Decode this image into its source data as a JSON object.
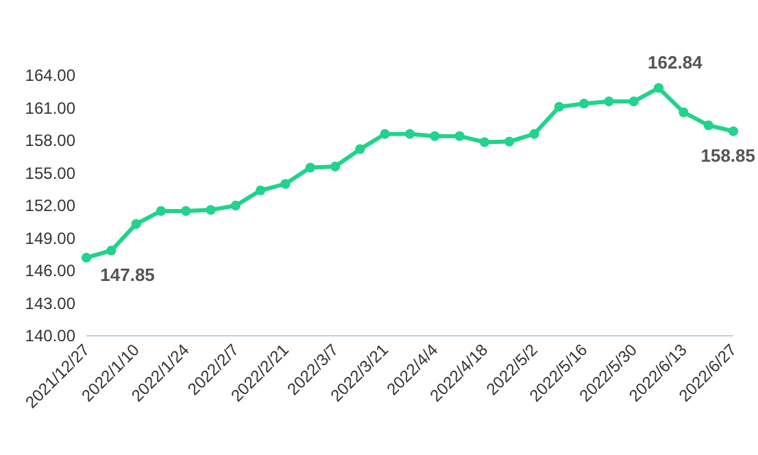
{
  "chart_data": {
    "type": "line",
    "marker": "circle",
    "line_style": "solid",
    "grid": false,
    "x": [
      "2021-12-27",
      "2022-01-03",
      "2022-01-10",
      "2022-01-17",
      "2022-01-24",
      "2022-01-31",
      "2022-02-07",
      "2022-02-14",
      "2022-02-21",
      "2022-02-28",
      "2022-03-07",
      "2022-03-14",
      "2022-03-21",
      "2022-03-28",
      "2022-04-04",
      "2022-04-11",
      "2022-04-18",
      "2022-04-25",
      "2022-05-02",
      "2022-05-09",
      "2022-05-16",
      "2022-05-23",
      "2022-05-30",
      "2022-06-06",
      "2022-06-13",
      "2022-06-20",
      "2022-06-27"
    ],
    "series": [
      {
        "color": "#21d38b",
        "values": [
          147.2,
          147.85,
          150.3,
          151.5,
          151.5,
          151.6,
          152.0,
          153.4,
          154.0,
          155.5,
          155.6,
          157.2,
          158.6,
          158.6,
          158.4,
          158.4,
          157.85,
          157.9,
          158.6,
          161.1,
          161.4,
          161.6,
          161.6,
          162.84,
          160.6,
          159.4,
          158.85
        ]
      }
    ],
    "xlim": [
      "2021-12-27",
      "2022-06-27"
    ],
    "xticks": [
      {
        "value": "2021-12-27",
        "label": "2021/12/27"
      },
      {
        "value": "2022-01-10",
        "label": "2022/1/10"
      },
      {
        "value": "2022-01-24",
        "label": "2022/1/24"
      },
      {
        "value": "2022-02-07",
        "label": "2022/2/7"
      },
      {
        "value": "2022-02-21",
        "label": "2022/2/21"
      },
      {
        "value": "2022-03-07",
        "label": "2022/3/7"
      },
      {
        "value": "2022-03-21",
        "label": "2022/3/21"
      },
      {
        "value": "2022-04-04",
        "label": "2022/4/4"
      },
      {
        "value": "2022-04-18",
        "label": "2022/4/18"
      },
      {
        "value": "2022-05-02",
        "label": "2022/5/2"
      },
      {
        "value": "2022-05-16",
        "label": "2022/5/16"
      },
      {
        "value": "2022-05-30",
        "label": "2022/5/30"
      },
      {
        "value": "2022-06-13",
        "label": "2022/6/13"
      },
      {
        "value": "2022-06-27",
        "label": "2022/6/27"
      }
    ],
    "ylim": [
      140,
      164
    ],
    "yticks": [
      {
        "value": 140,
        "label": "140.00"
      },
      {
        "value": 143,
        "label": "143.00"
      },
      {
        "value": 146,
        "label": "146.00"
      },
      {
        "value": 149,
        "label": "149.00"
      },
      {
        "value": 152,
        "label": "152.00"
      },
      {
        "value": 155,
        "label": "155.00"
      },
      {
        "value": 158,
        "label": "158.00"
      },
      {
        "value": 161,
        "label": "161.00"
      },
      {
        "value": 164,
        "label": "164.00"
      }
    ],
    "annotations": [
      {
        "text": "147.85",
        "x": "2022-01-03",
        "y": 147.85
      },
      {
        "text": "162.84",
        "x": "2022-06-06",
        "y": 162.84
      },
      {
        "text": "158.85",
        "x": "2022-06-27",
        "y": 158.85
      }
    ]
  }
}
